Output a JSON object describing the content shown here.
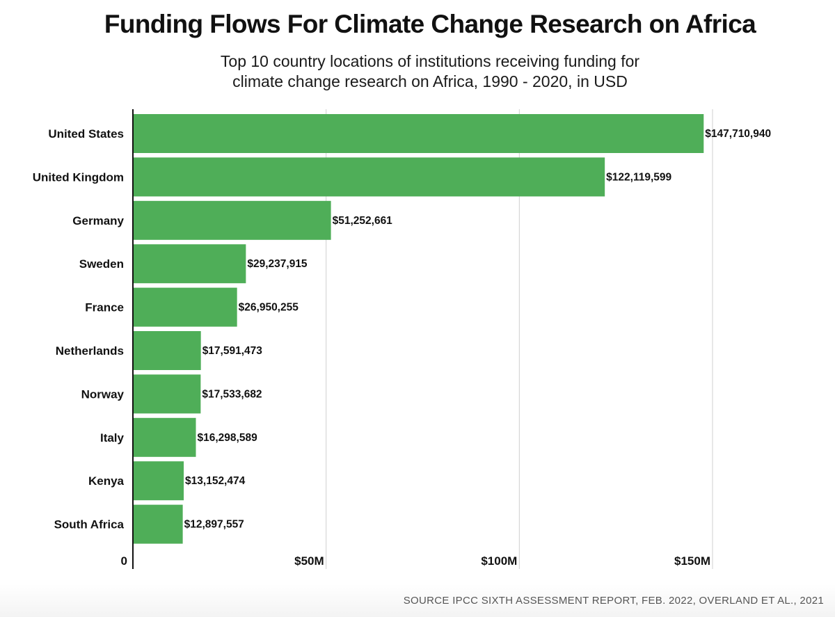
{
  "chart_data": {
    "type": "bar",
    "orientation": "horizontal",
    "title": "Funding Flows For Climate Change Research on Africa",
    "subtitle_lines": [
      "Top 10 country locations of institutions receiving funding for",
      "climate change research on Africa, 1990 - 2020, in USD"
    ],
    "categories": [
      "United States",
      "United Kingdom",
      "Germany",
      "Sweden",
      "France",
      "Netherlands",
      "Norway",
      "Italy",
      "Kenya",
      "South Africa"
    ],
    "values": [
      147710940,
      122119599,
      51252661,
      29237915,
      26950255,
      17591473,
      17533682,
      16298589,
      13152474,
      12897557
    ],
    "value_labels": [
      "$147,710,940",
      "$122,119,599",
      "$51,252,661",
      "$29,237,915",
      "$26,950,255",
      "$17,591,473",
      "$17,533,682",
      "$16,298,589",
      "$13,152,474",
      "$12,897,557"
    ],
    "x_ticks": [
      {
        "value": 0,
        "label": "0"
      },
      {
        "value": 50000000,
        "label": "$50M"
      },
      {
        "value": 100000000,
        "label": "$100M"
      },
      {
        "value": 150000000,
        "label": "$150M"
      }
    ],
    "xlim": [
      0,
      150000000
    ],
    "grid": true,
    "bar_color": "#4fae58",
    "source": "SOURCE IPCC SIXTH ASSESSMENT REPORT, FEB. 2022, OVERLAND ET AL., 2021"
  }
}
